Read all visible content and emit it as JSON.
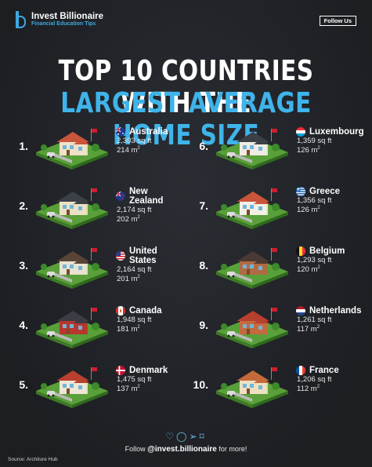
{
  "header": {
    "brand_name": "Invest Billionaire",
    "brand_tagline": "Financial Education Tips",
    "follow_button": "Follow Us"
  },
  "title": {
    "line1": "TOP 10 COUNTRIES WITH THE",
    "line2": "LARGEST AVERAGE HOME SIZE"
  },
  "colors": {
    "accent": "#3fb4ea",
    "background": "#1f2126"
  },
  "entries": [
    {
      "rank": "1.",
      "country": "Australia",
      "sqft": "2,303 sq ft",
      "sqm": "214 m",
      "flag": "australia-flag-icon",
      "roof": "#c9553a",
      "wall": "#efe2c8"
    },
    {
      "rank": "2.",
      "country": "New Zealand",
      "sqft": "2,174 sq ft",
      "sqm": "202 m",
      "flag": "new-zealand-flag-icon",
      "roof": "#3b3f46",
      "wall": "#ece0c4"
    },
    {
      "rank": "3.",
      "country": "United States",
      "sqft": "2,164 sq ft",
      "sqm": "201 m",
      "flag": "united-states-flag-icon",
      "roof": "#5a4438",
      "wall": "#e9e2d2"
    },
    {
      "rank": "4.",
      "country": "Canada",
      "sqft": "1,948 sq ft",
      "sqm": "181 m",
      "flag": "canada-flag-icon",
      "roof": "#3a3d44",
      "wall": "#b8362c"
    },
    {
      "rank": "5.",
      "country": "Denmark",
      "sqft": "1,475 sq ft",
      "sqm": "137 m",
      "flag": "denmark-flag-icon",
      "roof": "#b8402e",
      "wall": "#efe6d6"
    },
    {
      "rank": "6.",
      "country": "Luxembourg",
      "sqft": "1,359 sq ft",
      "sqm": "126 m",
      "flag": "luxembourg-flag-icon",
      "roof": "#3b3f46",
      "wall": "#f0ece4"
    },
    {
      "rank": "7.",
      "country": "Greece",
      "sqft": "1,356 sq ft",
      "sqm": "126 m",
      "flag": "greece-flag-icon",
      "roof": "#c9553a",
      "wall": "#f3efe6"
    },
    {
      "rank": "8.",
      "country": "Belgium",
      "sqft": "1,293 sq ft",
      "sqm": "120 m",
      "flag": "belgium-flag-icon",
      "roof": "#4a3a34",
      "wall": "#b06a44"
    },
    {
      "rank": "9.",
      "country": "Netherlands",
      "sqft": "1,261 sq ft",
      "sqm": "117 m",
      "flag": "netherlands-flag-icon",
      "roof": "#b8402e",
      "wall": "#c46a3e"
    },
    {
      "rank": "10.",
      "country": "France",
      "sqft": "1,206 sq ft",
      "sqm": "112 m",
      "flag": "france-flag-icon",
      "roof": "#c46a3a",
      "wall": "#ede0c2"
    }
  ],
  "footer": {
    "icons": [
      "heart-icon",
      "comment-icon",
      "share-icon",
      "bookmark-icon"
    ],
    "follow_prefix": "Follow",
    "handle": "@invest.billionaire",
    "follow_suffix": "for more!",
    "source": "Source: Architure Hub"
  }
}
